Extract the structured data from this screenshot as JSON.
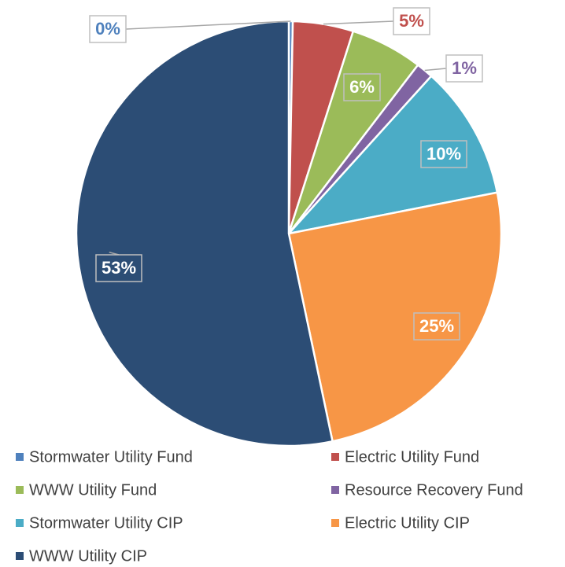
{
  "chart_data": {
    "type": "pie",
    "categories": [
      "Stormwater Utility Fund",
      "Electric Utility Fund",
      "WWW Utility Fund",
      "Resource Recovery Fund",
      "Stormwater Utility CIP",
      "Electric Utility CIP",
      "WWW Utility CIP"
    ],
    "values": [
      0.3,
      4.6,
      5.5,
      1.3,
      10.2,
      24.8,
      53.3
    ],
    "value_labels": [
      "0%",
      "5%",
      "6%",
      "1%",
      "10%",
      "25%",
      "53%"
    ],
    "colors": [
      "#4f81bd",
      "#c0504d",
      "#9bbb59",
      "#8064a2",
      "#4bacc6",
      "#f79646",
      "#2c4d75"
    ],
    "legend": "bottom"
  }
}
